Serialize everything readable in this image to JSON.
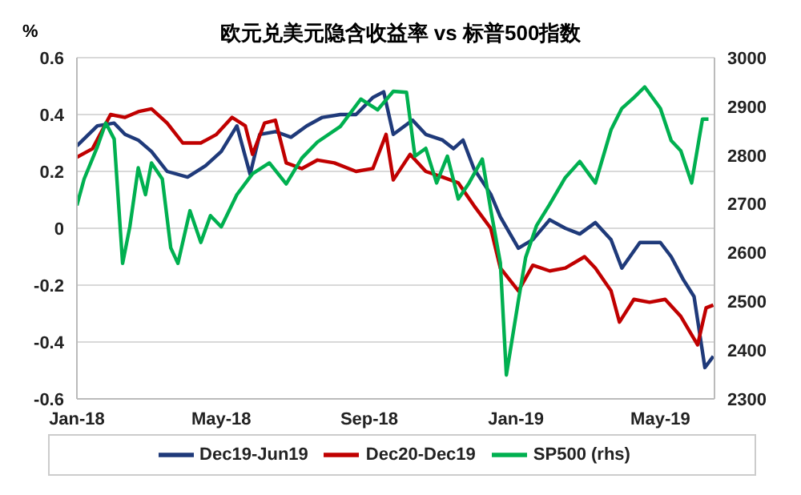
{
  "chart_data": {
    "type": "line",
    "title": "欧元兑美元隐含收益率 vs 标普500指数",
    "ylabel": "%",
    "xlim": [
      "2018-01-01",
      "2019-06-15"
    ],
    "xticks": [
      {
        "value": "2018-01-01",
        "label": "Jan-18"
      },
      {
        "value": "2018-05-01",
        "label": "May-18"
      },
      {
        "value": "2018-09-01",
        "label": "Sep-18"
      },
      {
        "value": "2019-01-01",
        "label": "Jan-19"
      },
      {
        "value": "2019-05-01",
        "label": "May-19"
      }
    ],
    "ylim": [
      -0.6,
      0.6
    ],
    "yticks": [
      -0.6,
      -0.4,
      -0.2,
      0,
      0.2,
      0.4,
      0.6
    ],
    "y2lim": [
      2300,
      3000
    ],
    "y2ticks": [
      2300,
      2400,
      2500,
      2600,
      2700,
      2800,
      2900,
      3000
    ],
    "grid": "y",
    "legend": "bottom",
    "marker": "none",
    "line_style": "solid",
    "series": [
      {
        "name": "Dec19-Jun19",
        "color": "#1f3a7a",
        "x": [
          "2018-01-01",
          "2018-01-18",
          "2018-02-01",
          "2018-02-10",
          "2018-02-21",
          "2018-03-04",
          "2018-03-17",
          "2018-04-03",
          "2018-04-18",
          "2018-05-01",
          "2018-05-14",
          "2018-05-25",
          "2018-06-02",
          "2018-06-15",
          "2018-06-28",
          "2018-07-11",
          "2018-07-24",
          "2018-08-08",
          "2018-08-21",
          "2018-09-04",
          "2018-09-13",
          "2018-09-21",
          "2018-10-07",
          "2018-10-18",
          "2018-11-01",
          "2018-11-10",
          "2018-11-18",
          "2018-11-27",
          "2018-12-11",
          "2018-12-19",
          "2019-01-03",
          "2019-01-15",
          "2019-01-29",
          "2019-02-11",
          "2019-02-23",
          "2019-03-08",
          "2019-03-21",
          "2019-03-30",
          "2019-04-14",
          "2019-05-01",
          "2019-05-10",
          "2019-05-20",
          "2019-05-29",
          "2019-06-07",
          "2019-06-14"
        ],
        "values": [
          0.29,
          0.36,
          0.37,
          0.33,
          0.31,
          0.27,
          0.2,
          0.18,
          0.22,
          0.27,
          0.36,
          0.19,
          0.33,
          0.34,
          0.32,
          0.36,
          0.39,
          0.4,
          0.4,
          0.46,
          0.48,
          0.33,
          0.38,
          0.33,
          0.31,
          0.28,
          0.31,
          0.21,
          0.12,
          0.04,
          -0.07,
          -0.04,
          0.03,
          0,
          -0.02,
          0.02,
          -0.04,
          -0.14,
          -0.05,
          -0.05,
          -0.1,
          -0.18,
          -0.24,
          -0.49,
          -0.45
        ]
      },
      {
        "name": "Dec20-Dec19",
        "color": "#c00000",
        "x": [
          "2018-01-01",
          "2018-01-14",
          "2018-01-29",
          "2018-02-10",
          "2018-02-21",
          "2018-03-04",
          "2018-03-17",
          "2018-03-30",
          "2018-04-14",
          "2018-04-27",
          "2018-05-10",
          "2018-05-21",
          "2018-05-27",
          "2018-06-06",
          "2018-06-15",
          "2018-06-24",
          "2018-07-07",
          "2018-07-20",
          "2018-08-03",
          "2018-08-21",
          "2018-09-04",
          "2018-09-15",
          "2018-09-21",
          "2018-10-05",
          "2018-10-18",
          "2018-11-01",
          "2018-11-14",
          "2018-11-27",
          "2018-12-11",
          "2018-12-19",
          "2019-01-03",
          "2019-01-15",
          "2019-01-29",
          "2019-02-11",
          "2019-02-27",
          "2019-03-08",
          "2019-03-21",
          "2019-03-28",
          "2019-04-09",
          "2019-04-22",
          "2019-05-05",
          "2019-05-18",
          "2019-06-01",
          "2019-06-08",
          "2019-06-14"
        ],
        "values": [
          0.25,
          0.28,
          0.4,
          0.39,
          0.41,
          0.42,
          0.37,
          0.3,
          0.3,
          0.33,
          0.39,
          0.36,
          0.26,
          0.37,
          0.38,
          0.23,
          0.21,
          0.24,
          0.23,
          0.2,
          0.21,
          0.33,
          0.17,
          0.26,
          0.2,
          0.18,
          0.16,
          0.08,
          0,
          -0.14,
          -0.22,
          -0.13,
          -0.15,
          -0.14,
          -0.1,
          -0.14,
          -0.22,
          -0.33,
          -0.25,
          -0.26,
          -0.25,
          -0.31,
          -0.41,
          -0.28,
          -0.27
        ]
      },
      {
        "name": "SP500 (rhs)",
        "color": "#00b050",
        "axis": "y2",
        "x": [
          "2018-01-01",
          "2018-01-07",
          "2018-01-18",
          "2018-01-25",
          "2018-02-01",
          "2018-02-08",
          "2018-02-14",
          "2018-02-21",
          "2018-02-27",
          "2018-03-04",
          "2018-03-13",
          "2018-03-20",
          "2018-03-26",
          "2018-04-05",
          "2018-04-14",
          "2018-04-22",
          "2018-05-01",
          "2018-05-14",
          "2018-05-27",
          "2018-06-10",
          "2018-06-24",
          "2018-07-07",
          "2018-07-20",
          "2018-08-08",
          "2018-08-25",
          "2018-09-08",
          "2018-09-21",
          "2018-10-02",
          "2018-10-09",
          "2018-10-18",
          "2018-10-27",
          "2018-11-05",
          "2018-11-14",
          "2018-11-23",
          "2018-12-04",
          "2018-12-11",
          "2018-12-19",
          "2018-12-24",
          "2019-01-03",
          "2019-01-09",
          "2019-01-18",
          "2019-01-29",
          "2019-02-11",
          "2019-02-23",
          "2019-03-08",
          "2019-03-21",
          "2019-03-30",
          "2019-04-09",
          "2019-04-18",
          "2019-05-01",
          "2019-05-10",
          "2019-05-18",
          "2019-05-27",
          "2019-06-05",
          "2019-06-10"
        ],
        "values": [
          2697,
          2751,
          2817,
          2866,
          2833,
          2578,
          2653,
          2774,
          2719,
          2784,
          2751,
          2610,
          2578,
          2686,
          2621,
          2676,
          2653,
          2719,
          2762,
          2784,
          2741,
          2794,
          2827,
          2859,
          2915,
          2893,
          2931,
          2929,
          2798,
          2814,
          2743,
          2798,
          2710,
          2743,
          2792,
          2688,
          2579,
          2349,
          2502,
          2590,
          2655,
          2699,
          2754,
          2787,
          2743,
          2852,
          2896,
          2918,
          2940,
          2896,
          2830,
          2809,
          2743,
          2874,
          2874
        ]
      }
    ]
  }
}
